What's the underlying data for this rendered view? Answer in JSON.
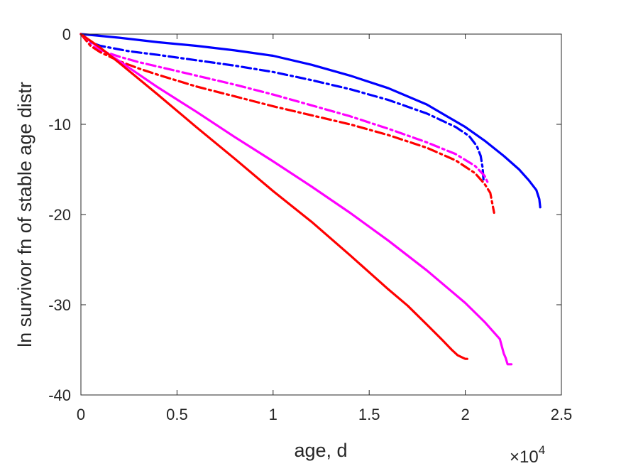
{
  "chart_data": {
    "type": "line",
    "title": "",
    "xlabel": "age, d",
    "ylabel": "ln survivor fn of stable age distr",
    "x_multiplier_text": "10",
    "x_multiplier_exponent": "4",
    "xlim": [
      0,
      25000
    ],
    "ylim": [
      -40,
      0
    ],
    "xticks": [
      0,
      5000,
      10000,
      15000,
      20000,
      25000
    ],
    "xtick_labels": [
      "0",
      "0.5",
      "1",
      "1.5",
      "2",
      "2.5"
    ],
    "yticks": [
      0,
      -10,
      -20,
      -30,
      -40
    ],
    "ytick_labels": [
      "0",
      "-10",
      "-20",
      "-30",
      "-40"
    ],
    "grid": false,
    "legend": "none",
    "series": [
      {
        "color": "#0000ff",
        "style": "solid",
        "x": [
          0,
          1000,
          2000,
          4000,
          6000,
          8000,
          10000,
          12000,
          14000,
          16000,
          18000,
          20000,
          21000,
          22000,
          22800,
          23300,
          23700,
          23850,
          23900
        ],
        "y": [
          0,
          -0.2,
          -0.4,
          -0.9,
          -1.3,
          -1.8,
          -2.4,
          -3.4,
          -4.6,
          -6.0,
          -7.8,
          -10.3,
          -11.8,
          -13.5,
          -15.0,
          -16.2,
          -17.3,
          -18.3,
          -19.2
        ]
      },
      {
        "color": "#0000ff",
        "style": "dashdot",
        "x": [
          0,
          500,
          1000,
          1500,
          2500,
          4000,
          6000,
          8000,
          10000,
          12000,
          14000,
          16000,
          18000,
          19500,
          20200,
          20600,
          20800,
          20900,
          20950
        ],
        "y": [
          0,
          -0.9,
          -1.3,
          -1.5,
          -1.9,
          -2.3,
          -2.9,
          -3.5,
          -4.2,
          -5.1,
          -6.1,
          -7.3,
          -8.8,
          -10.3,
          -11.3,
          -12.4,
          -13.5,
          -14.8,
          -16.2
        ]
      },
      {
        "color": "#ff00ff",
        "style": "dashdot",
        "x": [
          0,
          500,
          1000,
          2000,
          3000,
          4000,
          6000,
          8000,
          10000,
          12000,
          14000,
          16000,
          18000,
          19500,
          20500,
          21000,
          21200
        ],
        "y": [
          0,
          -1.2,
          -1.8,
          -2.5,
          -3.1,
          -3.6,
          -4.6,
          -5.6,
          -6.7,
          -7.9,
          -9.1,
          -10.5,
          -12.0,
          -13.3,
          -14.6,
          -15.7,
          -16.6
        ]
      },
      {
        "color": "#ff0000",
        "style": "dashdot",
        "x": [
          0,
          500,
          1000,
          2000,
          3000,
          4000,
          6000,
          8000,
          10000,
          12000,
          14000,
          16000,
          18000,
          19500,
          20500,
          21000,
          21300,
          21500
        ],
        "y": [
          0,
          -1.3,
          -2.0,
          -3.0,
          -3.8,
          -4.5,
          -5.8,
          -6.9,
          -8.0,
          -9.0,
          -10.0,
          -11.2,
          -12.6,
          -14.0,
          -15.4,
          -16.6,
          -17.6,
          -19.8
        ]
      },
      {
        "color": "#ff00ff",
        "style": "solid",
        "x": [
          0,
          1000,
          2000,
          4000,
          6000,
          8000,
          10000,
          12000,
          14000,
          16000,
          18000,
          20000,
          21000,
          21800,
          22000,
          22100,
          22200,
          22400
        ],
        "y": [
          0,
          -1.6,
          -3.0,
          -5.9,
          -8.6,
          -11.4,
          -14.1,
          -16.9,
          -19.8,
          -22.9,
          -26.2,
          -29.8,
          -31.9,
          -33.8,
          -35.4,
          -35.9,
          -36.6,
          -36.6
        ]
      },
      {
        "color": "#ff0000",
        "style": "solid",
        "x": [
          0,
          1000,
          2000,
          4000,
          6000,
          8000,
          10000,
          12000,
          14000,
          16000,
          17000,
          18000,
          18800,
          19300,
          19600,
          19800,
          20000,
          20100
        ],
        "y": [
          0,
          -1.5,
          -3.2,
          -6.7,
          -10.3,
          -13.8,
          -17.4,
          -20.8,
          -24.5,
          -28.3,
          -30.1,
          -32.2,
          -33.9,
          -35.0,
          -35.6,
          -35.8,
          -36.0,
          -36.0
        ]
      }
    ]
  }
}
